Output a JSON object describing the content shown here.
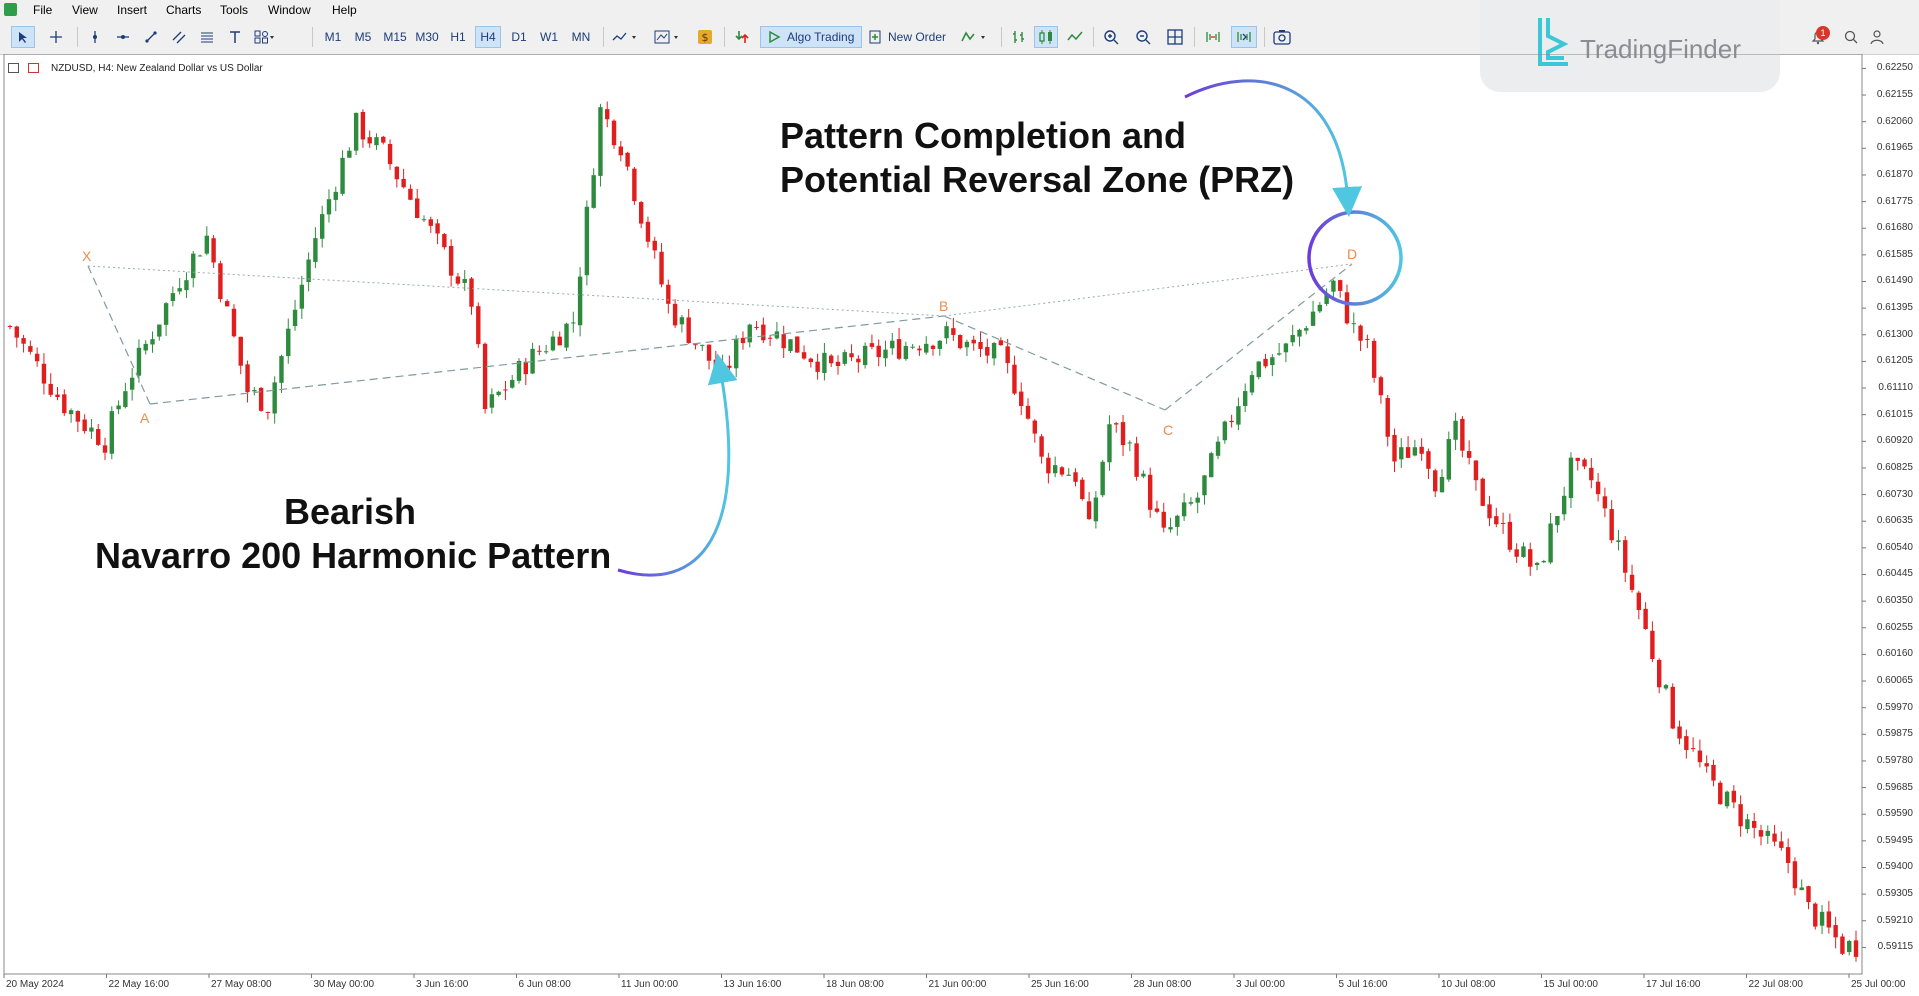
{
  "menu": [
    "File",
    "View",
    "Insert",
    "Charts",
    "Tools",
    "Window",
    "Help"
  ],
  "toolbar": {
    "timeframes": [
      "M1",
      "M5",
      "M15",
      "M30",
      "H1",
      "H4",
      "D1",
      "W1",
      "MN"
    ],
    "active_timeframe": "H4",
    "algo_trading_label": "Algo Trading",
    "new_order_label": "New Order",
    "notification_count": "1"
  },
  "brand": {
    "name": "TradingFinder"
  },
  "chart": {
    "symbol_label": "NZDUSD, H4:  New Zealand Dollar vs US Dollar",
    "annotations": {
      "top_line1": "Pattern Completion and",
      "top_line2": "Potential Reversal Zone (PRZ)",
      "bottom_line1": "Bearish",
      "bottom_line2": "Navarro 200 Harmonic Pattern"
    },
    "pattern_points": [
      {
        "label": "X",
        "price": 0.615,
        "date": "22 May 2024"
      },
      {
        "label": "A",
        "price": 0.6092,
        "date": "23 May 2024"
      },
      {
        "label": "B",
        "price": 0.6133,
        "date": "24 Jun 2024"
      },
      {
        "label": "C",
        "price": 0.61,
        "date": "1 Jul 2024"
      },
      {
        "label": "D",
        "price": 0.6152,
        "date": "5 Jul 2024"
      }
    ]
  },
  "chart_data": {
    "type": "candlestick",
    "symbol": "NZDUSD",
    "timeframe": "H4",
    "y_ticks": [
      "0.62250",
      "0.62155",
      "0.62060",
      "0.61965",
      "0.61870",
      "0.61775",
      "0.61680",
      "0.61585",
      "0.61490",
      "0.61395",
      "0.61300",
      "0.61205",
      "0.61110",
      "0.61015",
      "0.60920",
      "0.60825",
      "0.60730",
      "0.60635",
      "0.60540",
      "0.60445",
      "0.60350",
      "0.60255",
      "0.60160",
      "0.60065",
      "0.59970",
      "0.59875",
      "0.59780",
      "0.59685",
      "0.59590",
      "0.59495",
      "0.59400",
      "0.59305",
      "0.59210",
      "0.59115"
    ],
    "x_ticks": [
      "20 May 2024",
      "22 May 16:00",
      "27 May 08:00",
      "30 May 00:00",
      "3 Jun 16:00",
      "6 Jun 08:00",
      "11 Jun 00:00",
      "13 Jun 16:00",
      "18 Jun 08:00",
      "21 Jun 00:00",
      "25 Jun 16:00",
      "28 Jun 08:00",
      "3 Jul 00:00",
      "5 Jul 16:00",
      "10 Jul 08:00",
      "15 Jul 00:00",
      "17 Jul 16:00",
      "22 Jul 08:00",
      "25 Jul 00:00"
    ],
    "ylim": [
      0.5907,
      0.6228
    ],
    "up_color": "#2e8b3e",
    "down_color": "#e01e1e",
    "close_path": [
      [
        0,
        0.6133
      ],
      [
        8,
        0.6105
      ],
      [
        11,
        0.6098
      ],
      [
        14,
        0.6092
      ],
      [
        17,
        0.6112
      ],
      [
        25,
        0.615
      ],
      [
        29,
        0.6165
      ],
      [
        35,
        0.611
      ],
      [
        38,
        0.6105
      ],
      [
        45,
        0.6165
      ],
      [
        51,
        0.6205
      ],
      [
        55,
        0.6195
      ],
      [
        60,
        0.6175
      ],
      [
        68,
        0.6142
      ],
      [
        70,
        0.6103
      ],
      [
        76,
        0.612
      ],
      [
        83,
        0.6135
      ],
      [
        87,
        0.621
      ],
      [
        90,
        0.6198
      ],
      [
        97,
        0.614
      ],
      [
        105,
        0.6115
      ],
      [
        109,
        0.6135
      ],
      [
        113,
        0.613
      ],
      [
        121,
        0.6118
      ],
      [
        126,
        0.6122
      ],
      [
        133,
        0.6127
      ],
      [
        138,
        0.613
      ],
      [
        142,
        0.6125
      ],
      [
        146,
        0.6122
      ],
      [
        149,
        0.6108
      ],
      [
        152,
        0.6085
      ],
      [
        157,
        0.608
      ],
      [
        159,
        0.606
      ],
      [
        162,
        0.6098
      ],
      [
        165,
        0.609
      ],
      [
        170,
        0.6058
      ],
      [
        175,
        0.6072
      ],
      [
        183,
        0.6118
      ],
      [
        188,
        0.6125
      ],
      [
        195,
        0.6148
      ],
      [
        198,
        0.6132
      ],
      [
        200,
        0.6125
      ],
      [
        204,
        0.6085
      ],
      [
        208,
        0.6092
      ],
      [
        210,
        0.6078
      ],
      [
        213,
        0.6095
      ],
      [
        216,
        0.6075
      ],
      [
        220,
        0.606
      ],
      [
        225,
        0.6045
      ],
      [
        230,
        0.6082
      ],
      [
        233,
        0.6078
      ],
      [
        236,
        0.606
      ],
      [
        240,
        0.6032
      ],
      [
        245,
        0.5993
      ],
      [
        250,
        0.5972
      ],
      [
        255,
        0.5958
      ],
      [
        262,
        0.5942
      ],
      [
        265,
        0.5925
      ],
      [
        270,
        0.5912
      ]
    ]
  }
}
